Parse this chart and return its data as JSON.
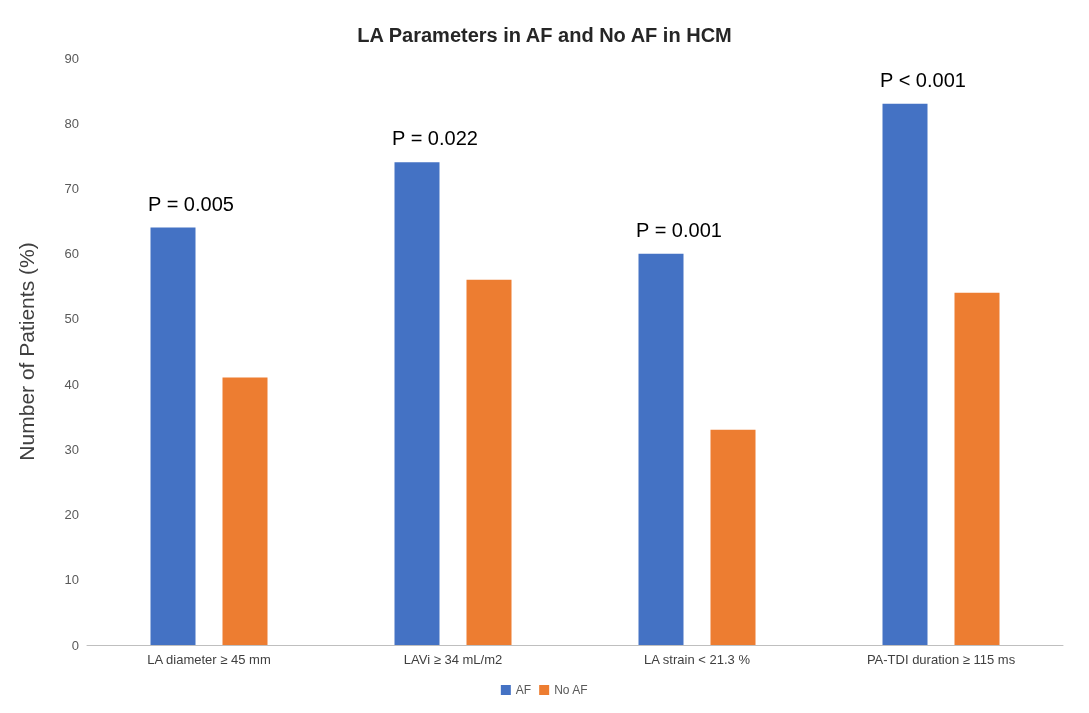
{
  "chart_data": {
    "type": "bar",
    "title": "LA Parameters in AF and No AF in HCM",
    "ylabel": "Number of Patients (%)",
    "categories": [
      "LA diameter ≥ 45 mm",
      "LAVi ≥ 34 mL/m2",
      "LA strain < 21.3 %",
      "PA-TDI duration ≥ 115 ms"
    ],
    "series": [
      {
        "name": "AF",
        "color": "#4472c4",
        "values": [
          64,
          74,
          60,
          83
        ]
      },
      {
        "name": "No AF",
        "color": "#ed7d31",
        "values": [
          41,
          56,
          33,
          54
        ]
      }
    ],
    "ylim": [
      0,
      90
    ],
    "yticks": [
      0,
      10,
      20,
      30,
      40,
      50,
      60,
      70,
      80,
      90
    ],
    "grid": false,
    "legend": "bottom",
    "annotations": [
      "P = 0.005",
      "P = 0.022",
      "P = 0.001",
      "P < 0.001"
    ]
  }
}
